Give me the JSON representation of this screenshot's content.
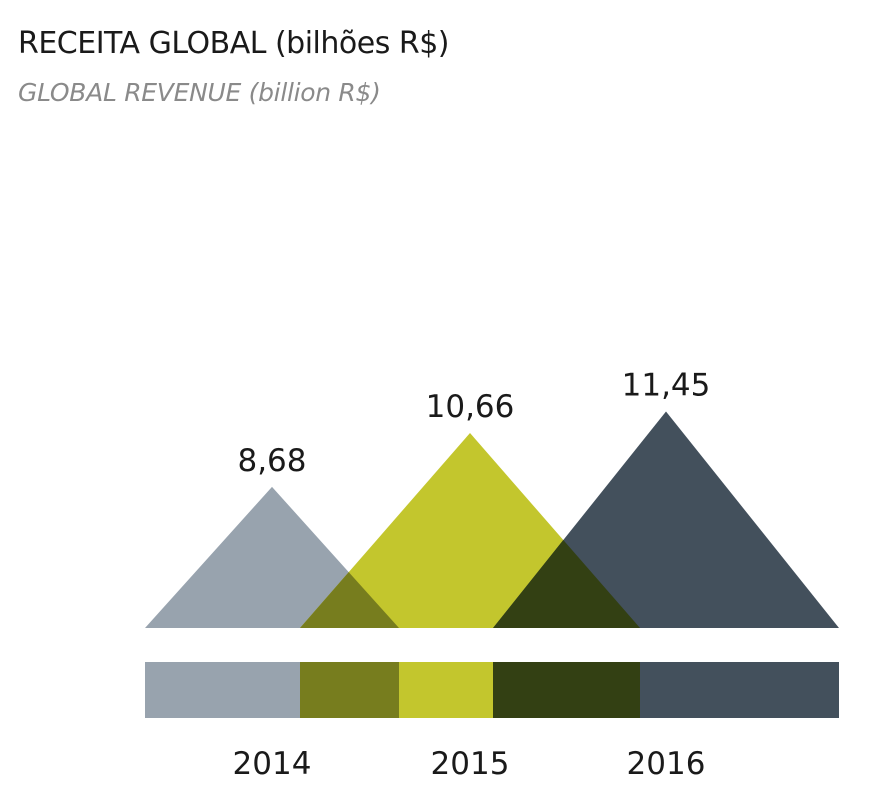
{
  "title": "RECEITA GLOBAL (bilhões R$)",
  "subtitle": "GLOBAL REVENUE (billion R$)",
  "chart_data": {
    "type": "area",
    "title": "RECEITA GLOBAL (bilhões R$)",
    "subtitle": "GLOBAL REVENUE (billion R$)",
    "categories": [
      "2014",
      "2015",
      "2016"
    ],
    "values": [
      8.68,
      10.66,
      11.45
    ],
    "value_labels": [
      "8,68",
      "10,66",
      "11,45"
    ],
    "colors": [
      "#98a3ae",
      "#c3c62d",
      "#43505c"
    ],
    "overlap_colors": [
      "#777d1e",
      "#334013"
    ],
    "grid": false,
    "legend": "none"
  }
}
